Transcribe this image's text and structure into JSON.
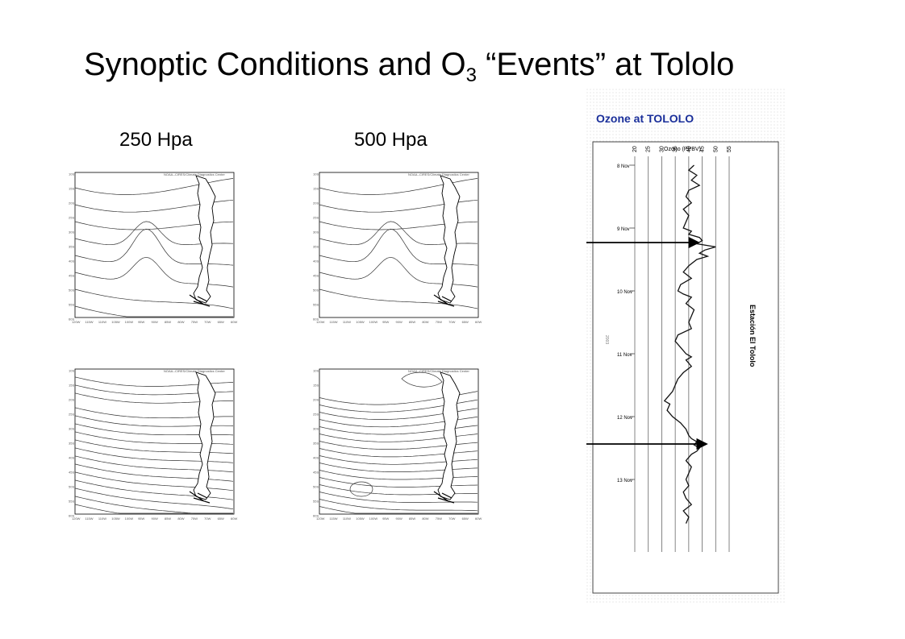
{
  "slide": {
    "title_part1": "Synoptic Conditions and O",
    "title_sub": "3",
    "title_part2": " “Events” at Tololo"
  },
  "levels": [
    "250 Hpa",
    "500 Hpa"
  ],
  "map_header": "NOAA--CIRES/Climate Diagnostics Center",
  "map_lat_ticks": [
    "10S",
    "15S",
    "20S",
    "25S",
    "30S",
    "35S",
    "40S",
    "45S",
    "50S",
    "55S",
    "60S"
  ],
  "map_lon_ticks": [
    "120W",
    "115W",
    "110W",
    "105W",
    "100W",
    "95W",
    "90W",
    "85W",
    "80W",
    "75W",
    "70W",
    "65W",
    "60W"
  ],
  "ozone_panel": {
    "title": "Ozone at TOLOLO",
    "axis_label": "Ozono (PPBV)",
    "x_ticks": [
      "20",
      "25",
      "30",
      "35",
      "40",
      "45",
      "50",
      "55"
    ],
    "dates": [
      "8 Nov",
      "9 Nov",
      "10 Nov",
      "11 Nov",
      "12 Nov",
      "13 Nov"
    ],
    "station": "Estación El Tololo",
    "year": "2003",
    "colors": {
      "line": "#111111",
      "frame": "#444444",
      "title": "#1a2f9a"
    }
  }
}
